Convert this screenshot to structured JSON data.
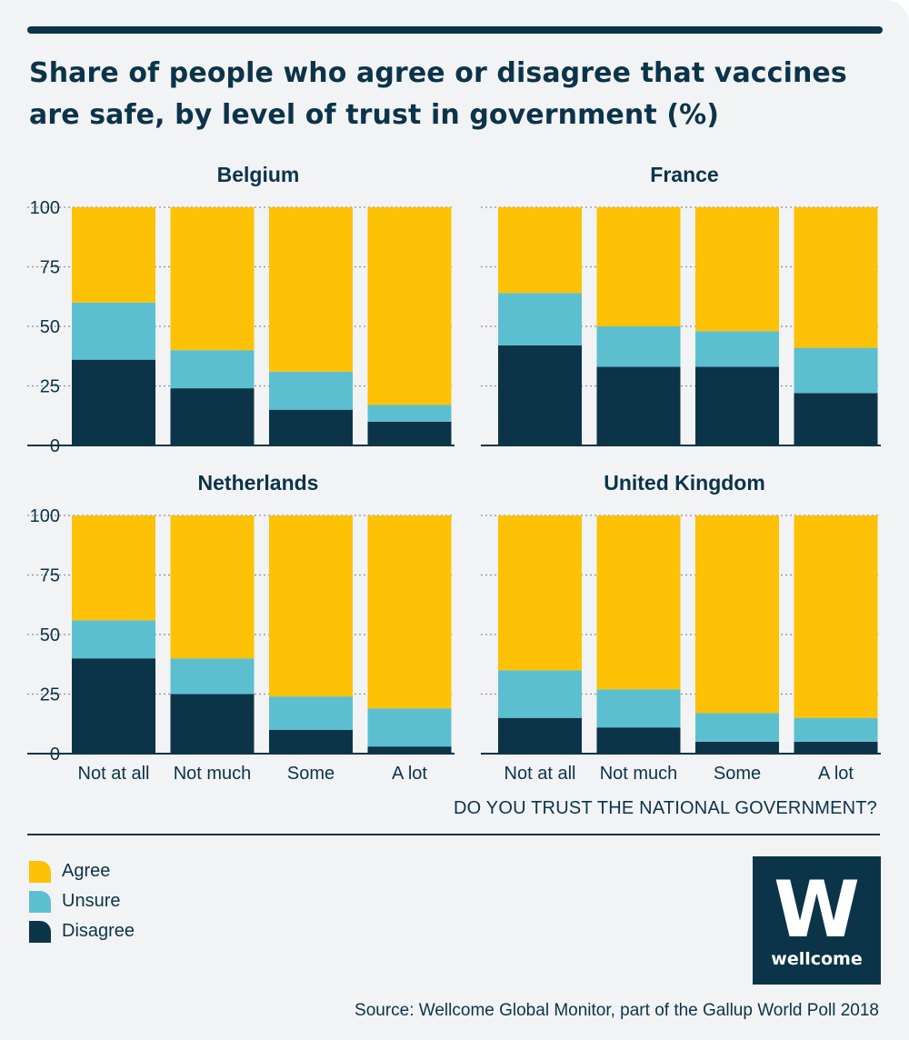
{
  "title": "Share of people who agree or disagree that vaccines are safe, by level of trust in government (%)",
  "x_axis_title": "DO YOU TRUST THE NATIONAL GOVERNMENT?",
  "legend": [
    {
      "label": "Agree",
      "color": "#fdc106"
    },
    {
      "label": "Unsure",
      "color": "#5cbfcf"
    },
    {
      "label": "Disagree",
      "color": "#0b3449"
    }
  ],
  "source": "Source: Wellcome Global Monitor, part of the Gallup World Poll 2018",
  "logo": {
    "mark": "W",
    "text": "wellcome"
  },
  "chart_data": [
    {
      "type": "bar",
      "stacked": true,
      "title": "Belgium",
      "categories": [
        "Not at all",
        "Not much",
        "Some",
        "A lot"
      ],
      "yticks": [
        "0",
        "25",
        "50",
        "75",
        "100"
      ],
      "ylim": [
        0,
        100
      ],
      "series": [
        {
          "name": "Disagree",
          "values": [
            36,
            24,
            15,
            10
          ]
        },
        {
          "name": "Unsure",
          "values": [
            24,
            16,
            16,
            7
          ]
        },
        {
          "name": "Agree",
          "values": [
            40,
            60,
            69,
            83
          ]
        }
      ]
    },
    {
      "type": "bar",
      "stacked": true,
      "title": "France",
      "categories": [
        "Not at all",
        "Not much",
        "Some",
        "A lot"
      ],
      "yticks": [
        "0",
        "25",
        "50",
        "75",
        "100"
      ],
      "ylim": [
        0,
        100
      ],
      "series": [
        {
          "name": "Disagree",
          "values": [
            42,
            33,
            33,
            22
          ]
        },
        {
          "name": "Unsure",
          "values": [
            22,
            17,
            15,
            19
          ]
        },
        {
          "name": "Agree",
          "values": [
            36,
            50,
            52,
            59
          ]
        }
      ]
    },
    {
      "type": "bar",
      "stacked": true,
      "title": "Netherlands",
      "categories": [
        "Not at all",
        "Not much",
        "Some",
        "A lot"
      ],
      "yticks": [
        "0",
        "25",
        "50",
        "75",
        "100"
      ],
      "ylim": [
        0,
        100
      ],
      "series": [
        {
          "name": "Disagree",
          "values": [
            40,
            25,
            10,
            3
          ]
        },
        {
          "name": "Unsure",
          "values": [
            16,
            15,
            14,
            16
          ]
        },
        {
          "name": "Agree",
          "values": [
            44,
            60,
            76,
            81
          ]
        }
      ]
    },
    {
      "type": "bar",
      "stacked": true,
      "title": "United Kingdom",
      "categories": [
        "Not at all",
        "Not much",
        "Some",
        "A lot"
      ],
      "yticks": [
        "0",
        "25",
        "50",
        "75",
        "100"
      ],
      "ylim": [
        0,
        100
      ],
      "series": [
        {
          "name": "Disagree",
          "values": [
            15,
            11,
            5,
            5
          ]
        },
        {
          "name": "Unsure",
          "values": [
            20,
            16,
            12,
            10
          ]
        },
        {
          "name": "Agree",
          "values": [
            65,
            73,
            83,
            85
          ]
        }
      ]
    }
  ]
}
